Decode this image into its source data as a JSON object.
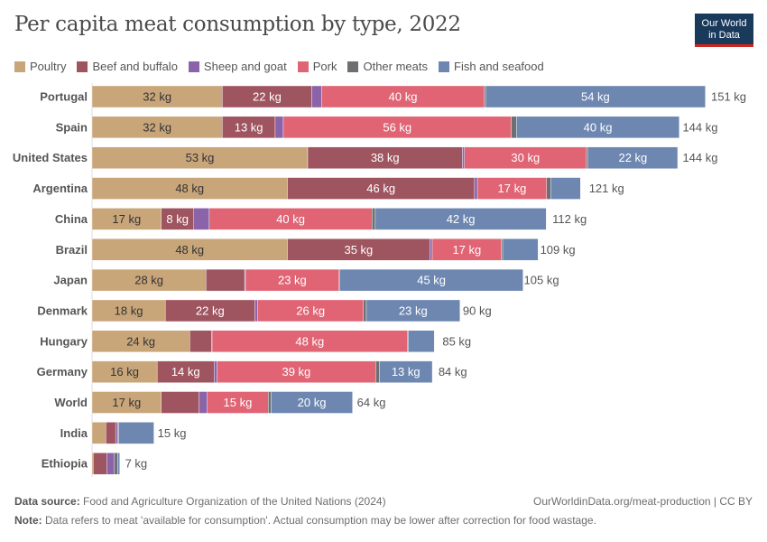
{
  "title": "Per capita meat consumption by type, 2022",
  "logo": {
    "line1": "Our World",
    "line2": "in Data",
    "colors": {
      "bg": "#1a3a5c",
      "accent": "#ce261e"
    }
  },
  "footer": {
    "source_label": "Data source:",
    "source": "Food and Agriculture Organization of the United Nations (2024)",
    "url": "OurWorldinData.org/meat-production | CC BY",
    "note_label": "Note:",
    "note": "Data refers to meat 'available for consumption'. Actual consumption may be lower after correction for food wastage."
  },
  "chart_data": {
    "type": "bar",
    "orientation": "horizontal",
    "stacked": true,
    "unit": "kg",
    "title": "Per capita meat consumption by type, 2022",
    "legend_position": "top",
    "grid": false,
    "categories": [
      "Portugal",
      "Spain",
      "United States",
      "Argentina",
      "China",
      "Brazil",
      "Japan",
      "Denmark",
      "Hungary",
      "Germany",
      "World",
      "India",
      "Ethiopia"
    ],
    "totals": [
      151,
      144,
      144,
      121,
      112,
      109,
      105,
      90,
      85,
      84,
      64,
      15,
      7
    ],
    "series": [
      {
        "name": "Poultry",
        "color": "#c9a67a",
        "label_color": "#333333",
        "values": [
          32,
          32,
          53,
          48,
          17,
          48,
          28,
          18,
          24,
          16,
          17,
          3.4,
          0.3
        ],
        "labeled": [
          true,
          true,
          true,
          true,
          true,
          true,
          true,
          true,
          true,
          true,
          true,
          false,
          false
        ]
      },
      {
        "name": "Beef and buffalo",
        "color": "#9f5560",
        "label_color": "#ffffff",
        "values": [
          22,
          13,
          38,
          46,
          8,
          35,
          9.5,
          22,
          5.4,
          14,
          9.3,
          2.4,
          3.3
        ],
        "labeled": [
          true,
          true,
          true,
          true,
          true,
          true,
          false,
          true,
          false,
          true,
          false,
          false,
          false
        ]
      },
      {
        "name": "Sheep and goat",
        "color": "#8a63a8",
        "label_color": "#ffffff",
        "values": [
          2.4,
          2,
          0.5,
          0.7,
          3.8,
          0.6,
          0.2,
          0.7,
          0.1,
          0.7,
          2,
          0.5,
          1.9
        ],
        "labeled": [
          false,
          false,
          false,
          false,
          false,
          false,
          false,
          false,
          false,
          false,
          false,
          false,
          false
        ]
      },
      {
        "name": "Pork",
        "color": "#e06474",
        "label_color": "#ffffff",
        "values": [
          40,
          56,
          30,
          17,
          40,
          17,
          23,
          26,
          48,
          39,
          15,
          0.2,
          0
        ],
        "labeled": [
          true,
          true,
          true,
          true,
          true,
          true,
          true,
          true,
          true,
          true,
          true,
          false,
          false
        ]
      },
      {
        "name": "Other meats",
        "color": "#6e6f73",
        "label_color": "#ffffff",
        "values": [
          0.3,
          1.3,
          0.4,
          1,
          0.8,
          0.3,
          0.2,
          0.7,
          0.2,
          0.9,
          0.7,
          0,
          0.8
        ],
        "labeled": [
          false,
          false,
          false,
          false,
          false,
          false,
          false,
          false,
          false,
          false,
          false,
          false,
          false
        ]
      },
      {
        "name": "Fish and seafood",
        "color": "#6d87b1",
        "label_color": "#ffffff",
        "values": [
          54,
          40,
          22,
          7.3,
          42,
          8.7,
          45,
          23,
          6.4,
          13,
          20,
          8.7,
          0.5
        ],
        "labeled": [
          true,
          true,
          true,
          false,
          true,
          false,
          true,
          true,
          false,
          true,
          true,
          false,
          false
        ]
      }
    ]
  }
}
